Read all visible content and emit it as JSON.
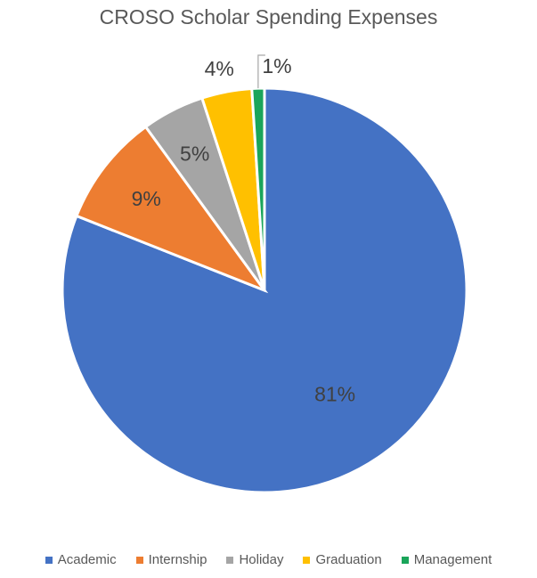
{
  "chart_data": {
    "type": "pie",
    "title": "CROSO Scholar Spending Expenses",
    "categories": [
      "Academic",
      "Internship",
      "Holiday",
      "Graduation",
      "Management"
    ],
    "values": [
      81,
      9,
      5,
      4,
      1
    ],
    "value_labels": [
      "81%",
      "9%",
      "5%",
      "4%",
      "1%"
    ],
    "colors": [
      "#4472C4",
      "#ED7D31",
      "#A5A5A5",
      "#FFC000",
      "#1AA55A"
    ],
    "start_angle_deg": 0,
    "direction": "clockwise",
    "legend_position": "bottom"
  }
}
